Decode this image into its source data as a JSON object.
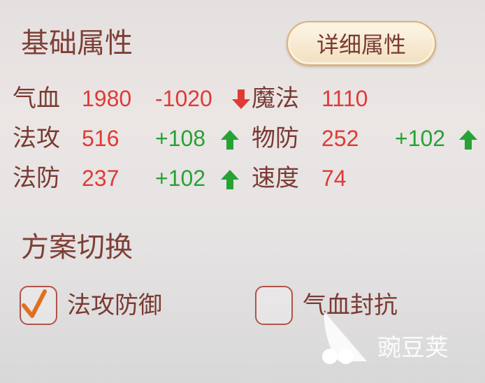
{
  "basic": {
    "title": "基础属性",
    "detail_button": "详细属性",
    "stats": [
      {
        "label": "气血",
        "value": "1980",
        "delta": "-1020",
        "trend": "down"
      },
      {
        "label": "魔法",
        "value": "1110",
        "delta": "",
        "trend": ""
      },
      {
        "label": "法攻",
        "value": "516",
        "delta": "+108",
        "trend": "up"
      },
      {
        "label": "物防",
        "value": "252",
        "delta": "+102",
        "trend": "up"
      },
      {
        "label": "法防",
        "value": "237",
        "delta": "+102",
        "trend": "up"
      },
      {
        "label": "速度",
        "value": "74",
        "delta": "",
        "trend": ""
      }
    ]
  },
  "scheme": {
    "title": "方案切换",
    "options": [
      {
        "label": "法攻防御",
        "checked": true
      },
      {
        "label": "气血封抗",
        "checked": false
      }
    ]
  },
  "watermark": "豌豆荚",
  "colors": {
    "label": "#7a3a33",
    "value": "#e03a35",
    "up": "#27a235",
    "check": "#e07020"
  }
}
